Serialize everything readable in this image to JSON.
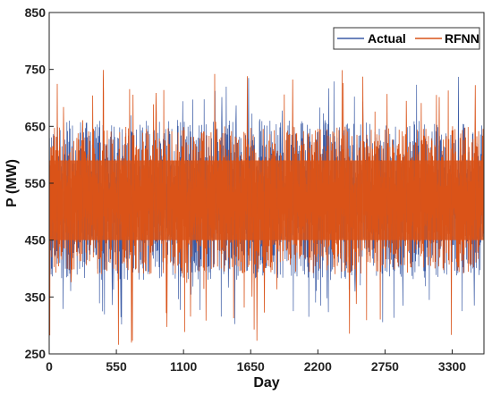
{
  "chart_data": {
    "type": "line",
    "xlabel": "Day",
    "ylabel": "P (MW)",
    "xlim": [
      0,
      3560
    ],
    "ylim": [
      250,
      850
    ],
    "xticks": [
      0,
      550,
      1100,
      1650,
      2200,
      2750,
      3300
    ],
    "yticks": [
      250,
      350,
      450,
      550,
      650,
      750,
      850
    ],
    "grid": false,
    "legend_position": "top-right",
    "series": [
      {
        "name": "Actual",
        "color": "#3b5ba5",
        "style": "dense high-frequency oscillation",
        "typical_range": [
          380,
          660
        ],
        "extreme_range": [
          300,
          740
        ]
      },
      {
        "name": "RFNN",
        "color": "#d95319",
        "style": "dense high-frequency oscillation",
        "typical_range": [
          390,
          650
        ],
        "extreme_range": [
          265,
          755
        ]
      }
    ]
  }
}
